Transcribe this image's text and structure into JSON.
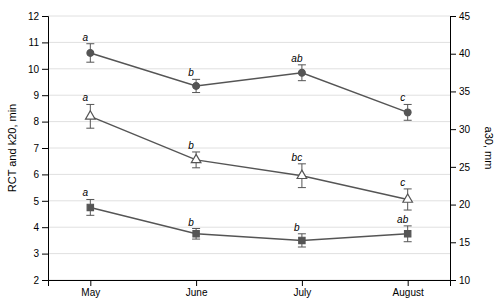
{
  "chart_data": {
    "type": "line",
    "categories": [
      "May",
      "June",
      "July",
      "August"
    ],
    "series": [
      {
        "values": [
          10.6,
          9.35,
          9.85,
          8.35
        ],
        "error": [
          0.35,
          0.25,
          0.3,
          0.3
        ],
        "annotations": [
          "a",
          "b",
          "ab",
          "c"
        ],
        "marker": "circle",
        "color": "#555555"
      },
      {
        "values": [
          8.2,
          6.55,
          5.95,
          5.05
        ],
        "error": [
          0.45,
          0.3,
          0.45,
          0.4
        ],
        "annotations": [
          "a",
          "b",
          "bc",
          "c"
        ],
        "marker": "triangle-open",
        "color": "#555555"
      },
      {
        "values": [
          4.75,
          3.75,
          3.5,
          3.75
        ],
        "error": [
          0.3,
          0.2,
          0.25,
          0.3
        ],
        "annotations": [
          "a",
          "b",
          "b",
          "ab"
        ],
        "marker": "square",
        "color": "#555555"
      }
    ],
    "ylim": [
      2,
      12
    ],
    "yticks": [
      2,
      3,
      4,
      5,
      6,
      7,
      8,
      9,
      10,
      11,
      12
    ],
    "y2lim": [
      10,
      45
    ],
    "y2ticks": [
      10,
      15,
      20,
      25,
      30,
      35,
      40,
      45
    ],
    "ylabel": "RCT and k20, min",
    "y2label": "a30, mm",
    "grid": true
  }
}
